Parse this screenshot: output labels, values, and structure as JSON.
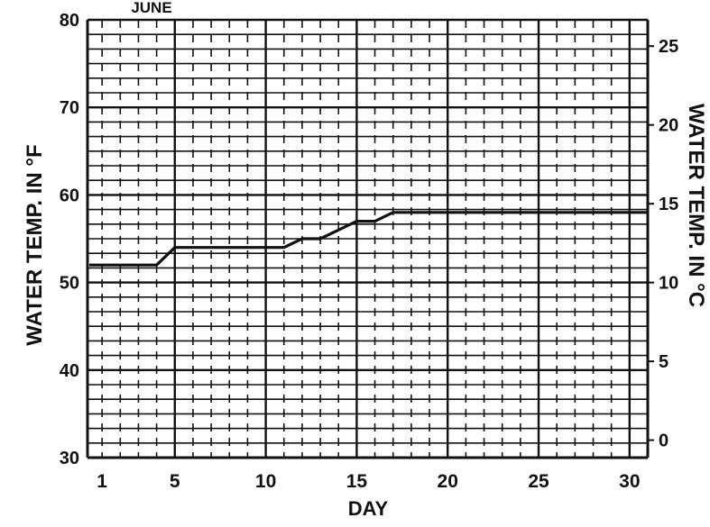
{
  "chart_data": {
    "type": "line",
    "title": "JUNE",
    "xlabel": "DAY",
    "ylabel": "WATER TEMP. IN °F",
    "ylabel_right": "WATER TEMP. IN °C",
    "x_tick_labels": [
      "1",
      "5",
      "10",
      "15",
      "20",
      "25",
      "30"
    ],
    "y_tick_labels": [
      "30",
      "40",
      "50",
      "60",
      "70",
      "80"
    ],
    "y_right_tick_labels": [
      "0",
      "5",
      "10",
      "15",
      "20",
      "25"
    ],
    "xlim": [
      0.2,
      31
    ],
    "ylim": [
      30,
      80
    ],
    "ylim_right": [
      -1.11,
      26.67
    ],
    "grid": true,
    "colors": {
      "line": "#111111",
      "grid": "#111111",
      "background": "#ffffff"
    },
    "series": [
      {
        "x": [
          0.3,
          1,
          2,
          3,
          4,
          5,
          6,
          7,
          8,
          9,
          10,
          11,
          12,
          13,
          14,
          15,
          16,
          17,
          18,
          19,
          20,
          25,
          30,
          31
        ],
        "y": [
          52,
          52,
          52,
          52,
          52,
          54,
          54,
          54,
          54,
          54,
          54,
          54,
          55,
          55,
          56,
          57,
          57,
          58,
          58,
          58,
          58,
          58,
          58,
          58
        ]
      }
    ]
  }
}
